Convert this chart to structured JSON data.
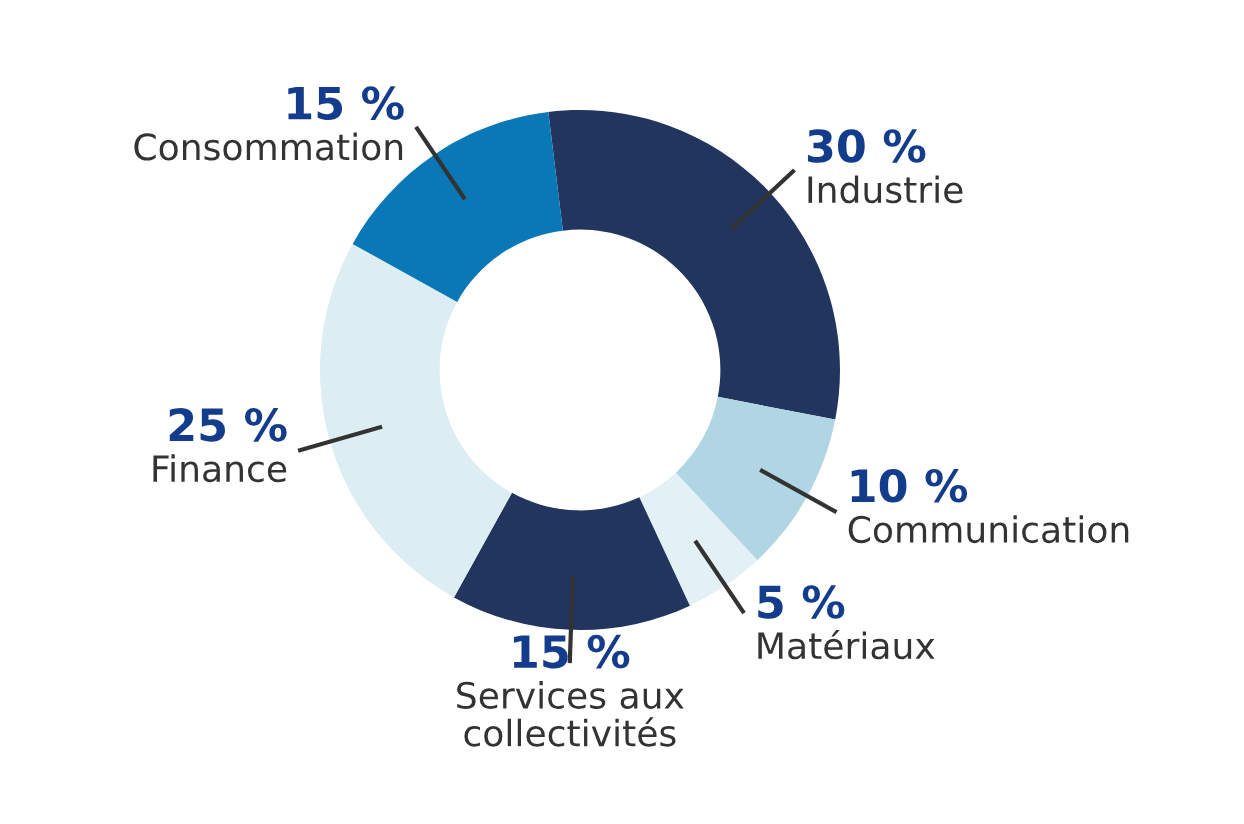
{
  "chart_data": {
    "type": "donut",
    "categories": [
      "Industrie",
      "Communication",
      "Matériaux",
      "Services aux\ncollectivités",
      "Finance",
      "Consommation"
    ],
    "values": [
      30,
      10,
      5,
      15,
      25,
      15
    ],
    "value_labels": [
      "30 %",
      "10 %",
      "5 %",
      "15 %",
      "25 %",
      "15 %"
    ],
    "colors": [
      "#22355e",
      "#b0d6e4",
      "#e3f1f6",
      "#22355e",
      "#dcedf3",
      "#0a78b6"
    ]
  }
}
